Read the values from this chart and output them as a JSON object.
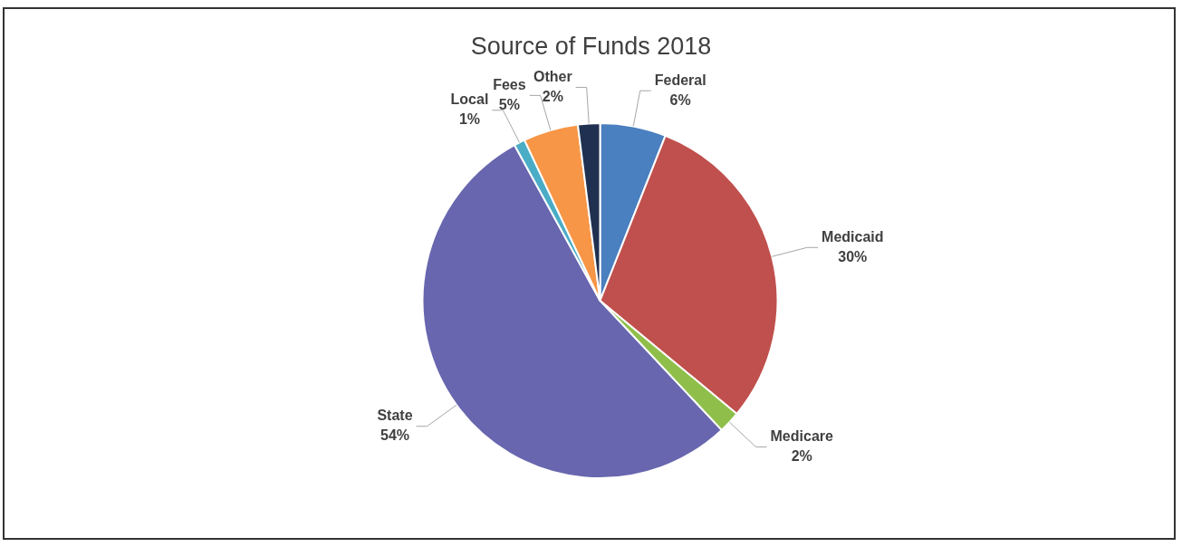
{
  "chart_data": {
    "type": "pie",
    "title": "Source of Funds 2018",
    "categories": [
      "Federal",
      "Medicaid",
      "Medicare",
      "State",
      "Local",
      "Fees",
      "Other"
    ],
    "values": [
      6,
      30,
      2,
      54,
      1,
      5,
      2
    ],
    "value_labels": [
      "6%",
      "30%",
      "2%",
      "54%",
      "1%",
      "5%",
      "2%"
    ],
    "colors": [
      "#4a7fc0",
      "#c0504d",
      "#8fbf4a",
      "#6866ae",
      "#4bacc6",
      "#f79646",
      "#1f3050"
    ],
    "legend": false
  }
}
